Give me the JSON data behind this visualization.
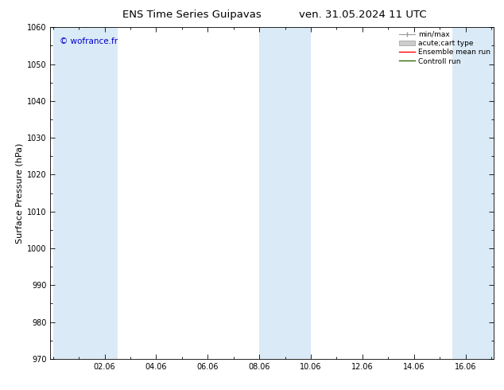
{
  "title_left": "ENS Time Series Guipavas",
  "title_right": "ven. 31.05.2024 11 UTC",
  "ylabel": "Surface Pressure (hPa)",
  "ylim": [
    970,
    1060
  ],
  "yticks": [
    970,
    980,
    990,
    1000,
    1010,
    1020,
    1030,
    1040,
    1050,
    1060
  ],
  "xtick_labels": [
    "02.06",
    "04.06",
    "06.06",
    "08.06",
    "10.06",
    "12.06",
    "14.06",
    "16.06"
  ],
  "xtick_positions": [
    2,
    4,
    6,
    8,
    10,
    12,
    14,
    16
  ],
  "xlim": [
    -0.1,
    17.1
  ],
  "shaded_bands": [
    {
      "x_start": 0.0,
      "x_end": 2.5
    },
    {
      "x_start": 8.0,
      "x_end": 10.0
    },
    {
      "x_start": 15.5,
      "x_end": 17.1
    }
  ],
  "shade_color": "#daeaf7",
  "background_color": "#ffffff",
  "watermark": "© wofrance.fr",
  "watermark_color": "#0000cc",
  "legend_items": [
    {
      "label": "min/max",
      "color": "#aaaaaa",
      "style": "errorbar"
    },
    {
      "label": "acute;cart type",
      "color": "#cccccc",
      "style": "bar"
    },
    {
      "label": "Ensemble mean run",
      "color": "#ff0000",
      "style": "line"
    },
    {
      "label": "Controll run",
      "color": "#336600",
      "style": "line"
    }
  ],
  "tick_color": "#000000",
  "spine_color": "#000000",
  "title_fontsize": 9.5,
  "label_fontsize": 8,
  "tick_fontsize": 7,
  "watermark_fontsize": 7.5,
  "legend_fontsize": 6.5
}
